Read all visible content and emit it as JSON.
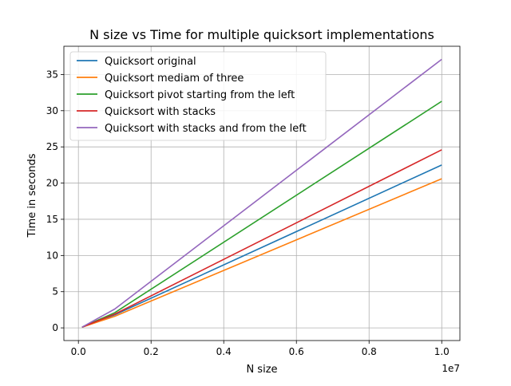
{
  "chart_data": {
    "type": "line",
    "title": "N size vs Time for multiple quicksort implementations",
    "xlabel": "N size",
    "ylabel": "Time in seconds",
    "x_offset_label": "1e7",
    "x_scale": 10000000,
    "xlim": [
      -400000,
      10500000
    ],
    "ylim": [
      -1.75,
      38.9
    ],
    "x_ticks": [
      0,
      2000000,
      4000000,
      6000000,
      8000000,
      10000000
    ],
    "x_tick_labels": [
      "0.0",
      "0.2",
      "0.4",
      "0.6",
      "0.8",
      "1.0"
    ],
    "y_ticks": [
      0,
      5,
      10,
      15,
      20,
      25,
      30,
      35
    ],
    "y_tick_labels": [
      "0",
      "5",
      "10",
      "15",
      "20",
      "25",
      "30",
      "35"
    ],
    "grid": true,
    "legend_position": "top-left",
    "x": [
      100000,
      1000000,
      10000000
    ],
    "series": [
      {
        "name": "Quicksort original",
        "color": "#1f77b4",
        "values": [
          0.1,
          1.8,
          22.5
        ]
      },
      {
        "name": "Quicksort mediam of three",
        "color": "#ff7f0e",
        "values": [
          0.1,
          1.6,
          20.6
        ]
      },
      {
        "name": "Quicksort pivot starting from the left",
        "color": "#2ca02c",
        "values": [
          0.1,
          2.1,
          31.3
        ]
      },
      {
        "name": "Quicksort with stacks",
        "color": "#d62728",
        "values": [
          0.1,
          1.9,
          24.6
        ]
      },
      {
        "name": "Quicksort with stacks and from the left",
        "color": "#9467bd",
        "values": [
          0.1,
          2.6,
          37.1
        ]
      }
    ]
  }
}
